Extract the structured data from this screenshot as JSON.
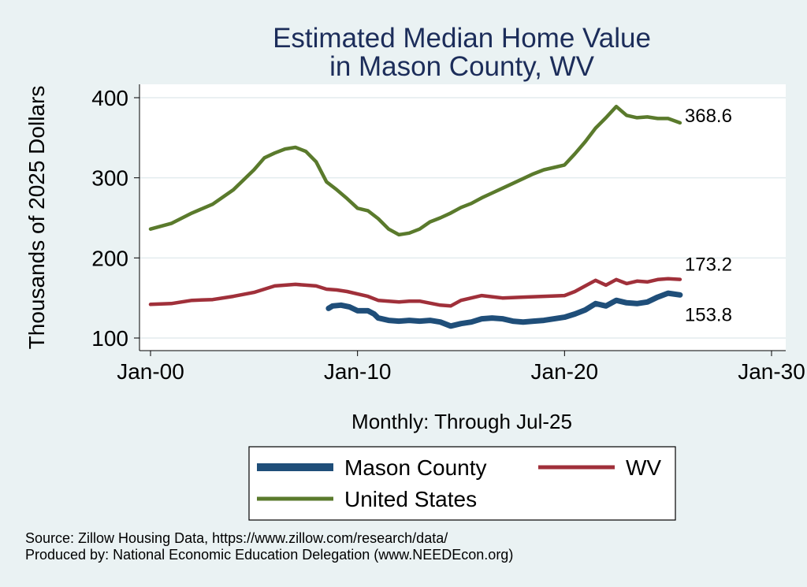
{
  "chart_data": {
    "type": "line",
    "title_lines": [
      "Estimated Median Home Value",
      "in Mason County, WV"
    ],
    "ylabel": "Thousands of 2025 Dollars",
    "xlabel": "Monthly: Through Jul-25",
    "ylim": [
      95,
      415
    ],
    "xlim": [
      2000.0,
      2030.0
    ],
    "yticks": [
      100,
      200,
      300,
      400
    ],
    "xticks": [
      {
        "value": 2000,
        "label": "Jan-00"
      },
      {
        "value": 2010,
        "label": "Jan-10"
      },
      {
        "value": 2020,
        "label": "Jan-20"
      },
      {
        "value": 2030,
        "label": "Jan-30"
      }
    ],
    "grid": true,
    "legend_position": "bottom",
    "series": [
      {
        "name": "Mason County",
        "color": "#1f4e79",
        "end_label": "153.8",
        "points": [
          [
            2008.6,
            137
          ],
          [
            2008.8,
            140
          ],
          [
            2009.2,
            141
          ],
          [
            2009.6,
            139
          ],
          [
            2010.0,
            134
          ],
          [
            2010.5,
            134
          ],
          [
            2010.8,
            130
          ],
          [
            2011.0,
            125
          ],
          [
            2011.5,
            122
          ],
          [
            2012.0,
            121
          ],
          [
            2012.5,
            122
          ],
          [
            2013.0,
            121
          ],
          [
            2013.5,
            122
          ],
          [
            2014.0,
            120
          ],
          [
            2014.5,
            115
          ],
          [
            2015.0,
            118
          ],
          [
            2015.5,
            120
          ],
          [
            2016.0,
            124
          ],
          [
            2016.5,
            125
          ],
          [
            2017.0,
            124
          ],
          [
            2017.5,
            121
          ],
          [
            2018.0,
            120
          ],
          [
            2018.5,
            121
          ],
          [
            2019.0,
            122
          ],
          [
            2019.5,
            124
          ],
          [
            2020.0,
            126
          ],
          [
            2020.5,
            130
          ],
          [
            2021.0,
            135
          ],
          [
            2021.5,
            143
          ],
          [
            2022.0,
            140
          ],
          [
            2022.5,
            147
          ],
          [
            2023.0,
            144
          ],
          [
            2023.5,
            143
          ],
          [
            2024.0,
            145
          ],
          [
            2024.5,
            151
          ],
          [
            2025.0,
            156
          ],
          [
            2025.58,
            153.8
          ]
        ]
      },
      {
        "name": "WV",
        "color": "#a0303a",
        "end_label": "173.2",
        "points": [
          [
            2000.0,
            142
          ],
          [
            2001.0,
            143
          ],
          [
            2002.0,
            147
          ],
          [
            2003.0,
            148
          ],
          [
            2004.0,
            152
          ],
          [
            2005.0,
            157
          ],
          [
            2006.0,
            165
          ],
          [
            2006.5,
            166
          ],
          [
            2007.0,
            167
          ],
          [
            2007.5,
            166
          ],
          [
            2008.0,
            165
          ],
          [
            2008.5,
            161
          ],
          [
            2009.0,
            160
          ],
          [
            2009.5,
            158
          ],
          [
            2010.0,
            155
          ],
          [
            2010.5,
            152
          ],
          [
            2011.0,
            147
          ],
          [
            2012.0,
            145
          ],
          [
            2012.5,
            146
          ],
          [
            2013.0,
            146
          ],
          [
            2014.0,
            141
          ],
          [
            2014.5,
            140
          ],
          [
            2015.0,
            147
          ],
          [
            2016.0,
            153
          ],
          [
            2017.0,
            150
          ],
          [
            2018.0,
            151
          ],
          [
            2019.0,
            152
          ],
          [
            2020.0,
            153
          ],
          [
            2020.5,
            158
          ],
          [
            2021.0,
            165
          ],
          [
            2021.5,
            172
          ],
          [
            2022.0,
            166
          ],
          [
            2022.5,
            173
          ],
          [
            2023.0,
            168
          ],
          [
            2023.5,
            171
          ],
          [
            2024.0,
            170
          ],
          [
            2024.5,
            173
          ],
          [
            2025.0,
            174
          ],
          [
            2025.58,
            173.2
          ]
        ]
      },
      {
        "name": "United States",
        "color": "#5a7a2c",
        "end_label": "368.6",
        "points": [
          [
            2000.0,
            236
          ],
          [
            2001.0,
            243
          ],
          [
            2002.0,
            256
          ],
          [
            2003.0,
            267
          ],
          [
            2004.0,
            285
          ],
          [
            2005.0,
            310
          ],
          [
            2005.5,
            325
          ],
          [
            2006.0,
            331
          ],
          [
            2006.5,
            336
          ],
          [
            2007.0,
            338
          ],
          [
            2007.5,
            333
          ],
          [
            2008.0,
            320
          ],
          [
            2008.5,
            295
          ],
          [
            2009.0,
            285
          ],
          [
            2009.5,
            274
          ],
          [
            2010.0,
            262
          ],
          [
            2010.5,
            259
          ],
          [
            2011.0,
            249
          ],
          [
            2011.5,
            236
          ],
          [
            2012.0,
            229
          ],
          [
            2012.5,
            231
          ],
          [
            2013.0,
            236
          ],
          [
            2013.5,
            245
          ],
          [
            2014.0,
            250
          ],
          [
            2014.5,
            256
          ],
          [
            2015.0,
            263
          ],
          [
            2015.5,
            268
          ],
          [
            2016.0,
            275
          ],
          [
            2016.5,
            281
          ],
          [
            2017.0,
            287
          ],
          [
            2017.5,
            293
          ],
          [
            2018.0,
            299
          ],
          [
            2018.5,
            305
          ],
          [
            2019.0,
            310
          ],
          [
            2019.5,
            313
          ],
          [
            2020.0,
            316
          ],
          [
            2020.5,
            330
          ],
          [
            2021.0,
            345
          ],
          [
            2021.5,
            362
          ],
          [
            2022.0,
            375
          ],
          [
            2022.5,
            389
          ],
          [
            2023.0,
            378
          ],
          [
            2023.5,
            375
          ],
          [
            2024.0,
            376
          ],
          [
            2024.5,
            374
          ],
          [
            2025.0,
            374
          ],
          [
            2025.58,
            368.6
          ]
        ]
      }
    ],
    "legend": [
      {
        "name": "Mason County",
        "color": "#1f4e79"
      },
      {
        "name": "WV",
        "color": "#a0303a"
      },
      {
        "name": "United States",
        "color": "#5a7a2c"
      }
    ],
    "notes": [
      "Source: Zillow Housing Data, https://www.zillow.com/research/data/",
      "Produced by: National Economic Education Delegation (www.NEEDEcon.org)"
    ]
  }
}
